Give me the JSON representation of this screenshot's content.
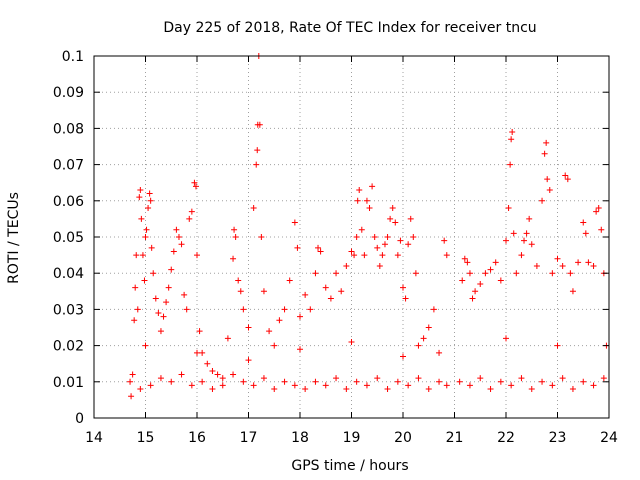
{
  "chart_data": {
    "type": "scatter",
    "title": "Day 225 of 2018, Rate Of TEC Index for receiver tncu",
    "xlabel": "GPS time / hours",
    "ylabel": "ROTI / TECUs",
    "xlim": [
      14,
      24
    ],
    "ylim": [
      0,
      0.1
    ],
    "xticks": [
      14,
      15,
      16,
      17,
      18,
      19,
      20,
      21,
      22,
      23,
      24
    ],
    "yticks": [
      0,
      0.01,
      0.02,
      0.03,
      0.04,
      0.05,
      0.06,
      0.07,
      0.08,
      0.09,
      0.1
    ],
    "xtick_labels": [
      "14",
      "15",
      "16",
      "17",
      "18",
      "19",
      "20",
      "21",
      "22",
      "23",
      "24"
    ],
    "ytick_labels": [
      "0",
      "0.01",
      "0.02",
      "0.03",
      "0.04",
      "0.05",
      "0.06",
      "0.07",
      "0.08",
      "0.09",
      "0.1"
    ],
    "grid": true,
    "marker": "+",
    "color": "#ff0000",
    "series": [
      {
        "name": "ROTI",
        "points": [
          [
            14.72,
            0.006
          ],
          [
            14.75,
            0.012
          ],
          [
            14.78,
            0.027
          ],
          [
            14.8,
            0.036
          ],
          [
            14.82,
            0.045
          ],
          [
            14.85,
            0.03
          ],
          [
            14.88,
            0.061
          ],
          [
            14.9,
            0.063
          ],
          [
            14.92,
            0.055
          ],
          [
            14.95,
            0.045
          ],
          [
            14.98,
            0.038
          ],
          [
            15.0,
            0.05
          ],
          [
            15.02,
            0.052
          ],
          [
            15.05,
            0.058
          ],
          [
            15.08,
            0.062
          ],
          [
            15.1,
            0.06
          ],
          [
            15.12,
            0.047
          ],
          [
            15.15,
            0.04
          ],
          [
            15.2,
            0.033
          ],
          [
            15.25,
            0.029
          ],
          [
            15.3,
            0.024
          ],
          [
            15.35,
            0.028
          ],
          [
            15.4,
            0.032
          ],
          [
            15.45,
            0.036
          ],
          [
            15.5,
            0.041
          ],
          [
            15.55,
            0.046
          ],
          [
            15.6,
            0.052
          ],
          [
            15.65,
            0.05
          ],
          [
            15.7,
            0.048
          ],
          [
            15.75,
            0.034
          ],
          [
            15.8,
            0.03
          ],
          [
            15.85,
            0.055
          ],
          [
            15.9,
            0.057
          ],
          [
            15.95,
            0.065
          ],
          [
            15.98,
            0.064
          ],
          [
            16.0,
            0.045
          ],
          [
            16.05,
            0.024
          ],
          [
            16.1,
            0.018
          ],
          [
            16.2,
            0.015
          ],
          [
            16.3,
            0.013
          ],
          [
            16.4,
            0.012
          ],
          [
            16.5,
            0.011
          ],
          [
            16.6,
            0.022
          ],
          [
            16.7,
            0.044
          ],
          [
            16.72,
            0.052
          ],
          [
            16.75,
            0.05
          ],
          [
            16.8,
            0.038
          ],
          [
            16.85,
            0.035
          ],
          [
            16.9,
            0.03
          ],
          [
            17.0,
            0.025
          ],
          [
            17.1,
            0.058
          ],
          [
            17.15,
            0.07
          ],
          [
            17.17,
            0.074
          ],
          [
            17.18,
            0.081
          ],
          [
            17.2,
            0.1
          ],
          [
            17.22,
            0.081
          ],
          [
            17.25,
            0.05
          ],
          [
            17.3,
            0.035
          ],
          [
            17.4,
            0.024
          ],
          [
            17.5,
            0.02
          ],
          [
            17.6,
            0.027
          ],
          [
            17.7,
            0.03
          ],
          [
            17.8,
            0.038
          ],
          [
            17.9,
            0.054
          ],
          [
            17.95,
            0.047
          ],
          [
            18.0,
            0.028
          ],
          [
            18.1,
            0.034
          ],
          [
            18.2,
            0.03
          ],
          [
            18.3,
            0.04
          ],
          [
            18.35,
            0.047
          ],
          [
            18.4,
            0.046
          ],
          [
            18.5,
            0.036
          ],
          [
            18.6,
            0.033
          ],
          [
            18.7,
            0.04
          ],
          [
            18.8,
            0.035
          ],
          [
            18.9,
            0.042
          ],
          [
            19.0,
            0.046
          ],
          [
            19.05,
            0.045
          ],
          [
            19.1,
            0.05
          ],
          [
            19.12,
            0.06
          ],
          [
            19.15,
            0.063
          ],
          [
            19.2,
            0.052
          ],
          [
            19.25,
            0.045
          ],
          [
            19.3,
            0.06
          ],
          [
            19.35,
            0.058
          ],
          [
            19.4,
            0.064
          ],
          [
            19.45,
            0.05
          ],
          [
            19.5,
            0.047
          ],
          [
            19.55,
            0.042
          ],
          [
            19.6,
            0.045
          ],
          [
            19.65,
            0.048
          ],
          [
            19.7,
            0.05
          ],
          [
            19.75,
            0.055
          ],
          [
            19.8,
            0.058
          ],
          [
            19.85,
            0.054
          ],
          [
            19.9,
            0.045
          ],
          [
            19.95,
            0.049
          ],
          [
            20.0,
            0.036
          ],
          [
            20.05,
            0.033
          ],
          [
            20.1,
            0.048
          ],
          [
            20.15,
            0.055
          ],
          [
            20.2,
            0.05
          ],
          [
            20.25,
            0.04
          ],
          [
            20.3,
            0.02
          ],
          [
            20.4,
            0.022
          ],
          [
            20.5,
            0.025
          ],
          [
            20.6,
            0.03
          ],
          [
            20.7,
            0.018
          ],
          [
            20.8,
            0.049
          ],
          [
            20.85,
            0.045
          ],
          [
            21.15,
            0.038
          ],
          [
            21.2,
            0.044
          ],
          [
            21.25,
            0.043
          ],
          [
            21.3,
            0.04
          ],
          [
            21.35,
            0.033
          ],
          [
            21.4,
            0.035
          ],
          [
            21.5,
            0.037
          ],
          [
            21.6,
            0.04
          ],
          [
            21.7,
            0.041
          ],
          [
            21.8,
            0.043
          ],
          [
            21.9,
            0.038
          ],
          [
            22.0,
            0.049
          ],
          [
            22.05,
            0.058
          ],
          [
            22.08,
            0.07
          ],
          [
            22.1,
            0.077
          ],
          [
            22.12,
            0.079
          ],
          [
            22.15,
            0.051
          ],
          [
            22.2,
            0.04
          ],
          [
            22.3,
            0.045
          ],
          [
            22.35,
            0.049
          ],
          [
            22.4,
            0.051
          ],
          [
            22.45,
            0.055
          ],
          [
            22.5,
            0.048
          ],
          [
            22.6,
            0.042
          ],
          [
            22.7,
            0.06
          ],
          [
            22.75,
            0.073
          ],
          [
            22.78,
            0.076
          ],
          [
            22.8,
            0.066
          ],
          [
            22.85,
            0.063
          ],
          [
            22.9,
            0.04
          ],
          [
            23.0,
            0.044
          ],
          [
            23.1,
            0.042
          ],
          [
            23.15,
            0.067
          ],
          [
            23.2,
            0.066
          ],
          [
            23.25,
            0.04
          ],
          [
            23.3,
            0.035
          ],
          [
            23.4,
            0.043
          ],
          [
            23.5,
            0.054
          ],
          [
            23.55,
            0.051
          ],
          [
            23.6,
            0.043
          ],
          [
            23.7,
            0.042
          ],
          [
            23.75,
            0.057
          ],
          [
            23.8,
            0.058
          ],
          [
            23.85,
            0.052
          ],
          [
            23.9,
            0.04
          ],
          [
            23.95,
            0.02
          ],
          [
            14.7,
            0.01
          ],
          [
            14.9,
            0.008
          ],
          [
            15.1,
            0.009
          ],
          [
            15.3,
            0.011
          ],
          [
            15.5,
            0.01
          ],
          [
            15.7,
            0.012
          ],
          [
            15.9,
            0.009
          ],
          [
            16.1,
            0.01
          ],
          [
            16.3,
            0.008
          ],
          [
            16.5,
            0.009
          ],
          [
            16.7,
            0.012
          ],
          [
            16.9,
            0.01
          ],
          [
            17.1,
            0.009
          ],
          [
            17.3,
            0.011
          ],
          [
            17.5,
            0.008
          ],
          [
            17.7,
            0.01
          ],
          [
            17.9,
            0.009
          ],
          [
            18.1,
            0.008
          ],
          [
            18.3,
            0.01
          ],
          [
            18.5,
            0.009
          ],
          [
            18.7,
            0.011
          ],
          [
            18.9,
            0.008
          ],
          [
            19.1,
            0.01
          ],
          [
            19.3,
            0.009
          ],
          [
            19.5,
            0.011
          ],
          [
            19.7,
            0.008
          ],
          [
            19.9,
            0.01
          ],
          [
            20.1,
            0.009
          ],
          [
            20.3,
            0.011
          ],
          [
            20.5,
            0.008
          ],
          [
            20.7,
            0.01
          ],
          [
            20.85,
            0.009
          ],
          [
            21.1,
            0.01
          ],
          [
            21.3,
            0.009
          ],
          [
            21.5,
            0.011
          ],
          [
            21.7,
            0.008
          ],
          [
            21.9,
            0.01
          ],
          [
            22.1,
            0.009
          ],
          [
            22.3,
            0.011
          ],
          [
            22.5,
            0.008
          ],
          [
            22.7,
            0.01
          ],
          [
            22.9,
            0.009
          ],
          [
            23.1,
            0.011
          ],
          [
            23.3,
            0.008
          ],
          [
            23.5,
            0.01
          ],
          [
            23.7,
            0.009
          ],
          [
            23.9,
            0.011
          ],
          [
            15.0,
            0.02
          ],
          [
            16.0,
            0.018
          ],
          [
            17.0,
            0.016
          ],
          [
            18.0,
            0.019
          ],
          [
            19.0,
            0.021
          ],
          [
            20.0,
            0.017
          ],
          [
            22.0,
            0.022
          ],
          [
            23.0,
            0.02
          ]
        ]
      }
    ]
  }
}
